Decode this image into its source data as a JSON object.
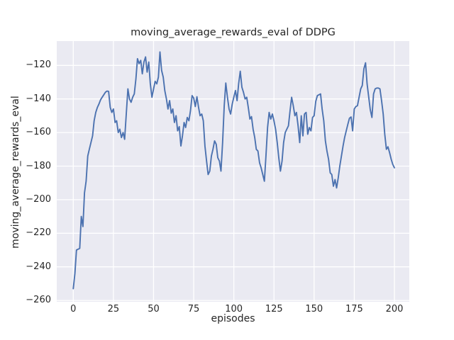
{
  "figure": {
    "title": "moving_average_rewards_eval of DDPG"
  },
  "axes": {
    "xlabel": "episodes",
    "ylabel": "moving_average_rewards_eval"
  },
  "colors": {
    "line": "#4C72B0",
    "axes_background": "#EAEAF2",
    "grid": "#FFFFFF",
    "text": "#262626",
    "figure_background": "#FFFFFF"
  },
  "chart_data": {
    "type": "line",
    "title": "moving_average_rewards_eval of DDPG",
    "xlabel": "episodes",
    "ylabel": "moving_average_rewards_eval",
    "legend": null,
    "grid": true,
    "style": "seaborn-darkgrid",
    "xlim": [
      -10.3,
      209.3
    ],
    "ylim": [
      -260,
      -105.5
    ],
    "x_ticks": [
      0,
      25,
      50,
      75,
      100,
      125,
      150,
      175,
      200
    ],
    "y_ticks": [
      -120,
      -140,
      -160,
      -180,
      -200,
      -220,
      -240,
      -260
    ],
    "x": {
      "start": 0,
      "step": 1,
      "count": 201
    },
    "series": [
      {
        "name": "moving_average_rewards_eval",
        "color": "#4C72B0",
        "values": [
          -253,
          -244,
          -230,
          -229.5,
          -229,
          -210,
          -216,
          -196,
          -189,
          -174,
          -170,
          -166,
          -162,
          -153,
          -148,
          -145,
          -143,
          -140.5,
          -139,
          -137.5,
          -136,
          -135.3,
          -135.5,
          -145,
          -148,
          -146,
          -154,
          -153,
          -160,
          -158,
          -163,
          -160,
          -164,
          -149,
          -134,
          -140,
          -142,
          -139,
          -137,
          -128,
          -116,
          -119,
          -117,
          -125,
          -118,
          -115,
          -124,
          -118,
          -131,
          -139,
          -134,
          -129.5,
          -131,
          -127,
          -112,
          -123,
          -127,
          -135,
          -140,
          -146,
          -141,
          -148.5,
          -146,
          -154,
          -150,
          -159,
          -156.5,
          -168,
          -162,
          -154,
          -157,
          -151,
          -153,
          -147,
          -138,
          -139.5,
          -144.5,
          -138.7,
          -145,
          -150,
          -149,
          -153,
          -168,
          -177,
          -185,
          -183,
          -174,
          -170,
          -165,
          -167,
          -175,
          -177,
          -183,
          -166,
          -144,
          -130.5,
          -139,
          -146,
          -149,
          -143,
          -139,
          -135,
          -141,
          -131,
          -123.5,
          -133,
          -136,
          -140,
          -139,
          -145,
          -152,
          -150.5,
          -158,
          -163,
          -170,
          -171,
          -178,
          -181,
          -185,
          -189,
          -174,
          -157,
          -148,
          -152,
          -149,
          -153,
          -158,
          -166,
          -175,
          -183,
          -177,
          -166,
          -160,
          -158,
          -156,
          -147,
          -139,
          -144,
          -150,
          -148,
          -156,
          -166,
          -150,
          -162,
          -149,
          -148,
          -161,
          -157,
          -159,
          -151,
          -150,
          -141.5,
          -138,
          -137.5,
          -137,
          -146,
          -153,
          -165,
          -171,
          -176,
          -184,
          -185,
          -192,
          -188,
          -193,
          -187,
          -180,
          -174,
          -168,
          -163,
          -159,
          -155,
          -151.5,
          -150.7,
          -159,
          -146,
          -144.5,
          -144,
          -139,
          -134,
          -132,
          -122,
          -118.5,
          -131,
          -139,
          -146.5,
          -151,
          -137,
          -134,
          -133.5,
          -133.5,
          -134,
          -141,
          -149,
          -161,
          -170,
          -168.5,
          -172,
          -176,
          -179,
          -181
        ]
      }
    ]
  }
}
